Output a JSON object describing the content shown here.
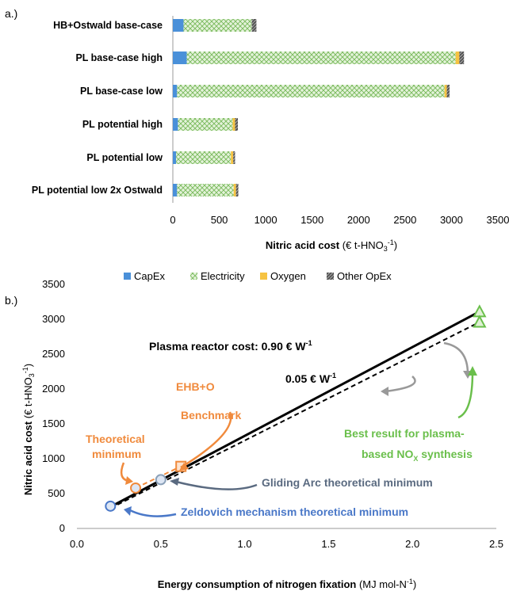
{
  "chart_data": [
    {
      "panel_label": "a.)",
      "type": "bar",
      "orientation": "horizontal",
      "stacked": true,
      "categories": [
        "HB+Ostwald base-case",
        "PL base-case high",
        "PL base-case low",
        "PL potential high",
        "PL potential low",
        "PL potential low 2x Ostwald"
      ],
      "series": [
        {
          "name": "CapEx",
          "color": "#4a90d9",
          "values": [
            115,
            150,
            45,
            55,
            35,
            45
          ]
        },
        {
          "name": "Electricity",
          "color": "#9bd17e",
          "pattern": "crosshatch",
          "values": [
            735,
            2895,
            2880,
            590,
            590,
            610
          ]
        },
        {
          "name": "Oxygen",
          "color": "#f6c342",
          "values": [
            0,
            40,
            25,
            25,
            25,
            25
          ]
        },
        {
          "name": "Other OpEx",
          "color": "#404040",
          "pattern": "diagonal",
          "values": [
            50,
            50,
            30,
            30,
            20,
            25
          ]
        }
      ],
      "xlabel": "Nitric acid cost",
      "xlabel_unit": "(€ t-HNO3-1)",
      "xlim": [
        0,
        3500
      ],
      "xticks": [
        "0",
        "500",
        "1000",
        "1500",
        "2000",
        "2500",
        "3000",
        "3500"
      ],
      "legend": [
        "CapEx",
        "Electricity",
        "Oxygen",
        "Other OpEx"
      ]
    },
    {
      "panel_label": "b.)",
      "type": "line",
      "xlabel": "Energy consumption of nitrogen fixation",
      "xlabel_unit": "(MJ mol-N-1)",
      "ylabel": "Nitric acid cost (€ t-HNO3-1)",
      "xlim": [
        0,
        2.5
      ],
      "ylim": [
        0,
        3500
      ],
      "xticks": [
        "0.0",
        "0.5",
        "1.0",
        "1.5",
        "2.0",
        "2.5"
      ],
      "yticks": [
        "0",
        "500",
        "1000",
        "1500",
        "2000",
        "2500",
        "3000",
        "3500"
      ],
      "series": [
        {
          "style": "solid",
          "color": "#000000",
          "x": [
            0.2,
            2.4
          ],
          "y": [
            310,
            3110
          ]
        },
        {
          "style": "dashed",
          "color": "#000000",
          "x": [
            0.2,
            2.4
          ],
          "y": [
            290,
            2960
          ]
        },
        {
          "style": "dashed",
          "color": "#f08a3c",
          "x": [
            0.35,
            0.62
          ],
          "y": [
            580,
            890
          ]
        }
      ],
      "points": [
        {
          "shape": "circle",
          "color": "#4a78c8",
          "x": 0.2,
          "y": 320
        },
        {
          "shape": "circle",
          "color": "#8aa0b8",
          "x": 0.5,
          "y": 700
        },
        {
          "shape": "circle",
          "color": "#f08a3c",
          "x": 0.35,
          "y": 580
        },
        {
          "shape": "square",
          "color": "#f08a3c",
          "x": 0.62,
          "y": 890
        },
        {
          "shape": "triangle",
          "color": "#6abf4b",
          "x": 2.4,
          "y": 3110
        },
        {
          "shape": "triangle",
          "color": "#6abf4b",
          "x": 2.4,
          "y": 2960
        }
      ],
      "annotations": {
        "reactor_cost_prefix": "Plasma reactor cost: 0.90 € W",
        "reactor_cost_sup": "-1",
        "reactor_cost_low": "0.05 € W",
        "reactor_cost_low_sup": "-1",
        "ehb": "EHB+O",
        "benchmark": "Benchmark",
        "theoretical_line1": "Theoretical",
        "theoretical_line2": "minimum",
        "gliding_arc": "Gliding Arc theoretical minimum",
        "zeldovich": "Zeldovich mechanism theoretical minimum",
        "best_line1": "Best result for plasma-",
        "best_line2_prefix": "based NO",
        "best_line2_sub": "X",
        "best_line2_suffix": " synthesis"
      }
    }
  ]
}
